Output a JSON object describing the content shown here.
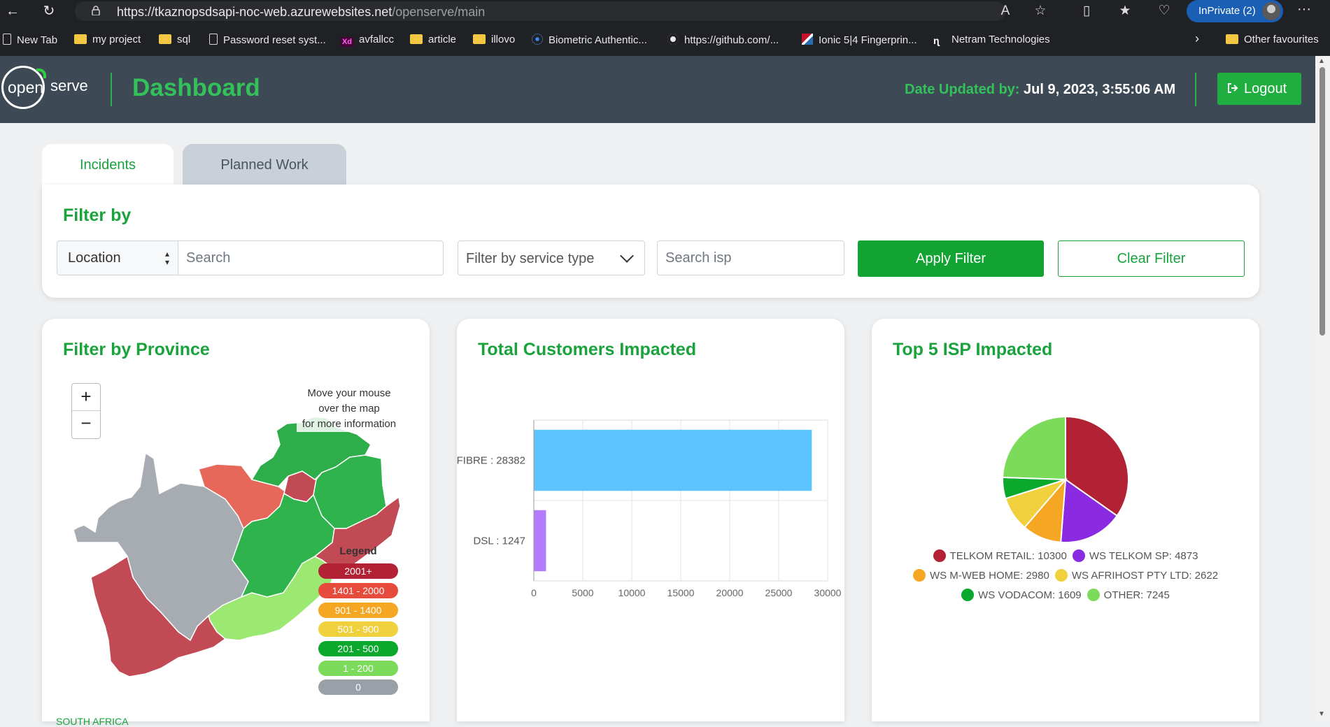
{
  "browser": {
    "url_host": "https://tkaznopsdsapi-noc-web.azurewebsites.net",
    "url_path": "/openserve/main",
    "inprivate_label": "InPrivate (2)",
    "bookmarks": [
      {
        "label": "New Tab",
        "icon": "page-icon"
      },
      {
        "label": "my project",
        "icon": "folder-icon"
      },
      {
        "label": "sql",
        "icon": "folder-icon"
      },
      {
        "label": "Password reset syst...",
        "icon": "page-icon"
      },
      {
        "label": "avfallcc",
        "icon": "xd-icon"
      },
      {
        "label": "article",
        "icon": "folder-icon"
      },
      {
        "label": "illovo",
        "icon": "folder-icon"
      },
      {
        "label": "Biometric Authentic...",
        "icon": "biometric-icon"
      },
      {
        "label": "https://github.com/...",
        "icon": "github-icon"
      },
      {
        "label": "Ionic 5|4 Fingerprin...",
        "icon": "ionic-icon"
      },
      {
        "label": "Netram Technologies",
        "icon": "netram-icon"
      }
    ],
    "other_favourites": "Other favourites"
  },
  "header": {
    "logo_open": "open",
    "logo_serve": "serve",
    "title": "Dashboard",
    "date_label": "Date Updated by:",
    "date_value": "Jul 9, 2023, 3:55:06 AM",
    "logout_label": "Logout"
  },
  "tabs": [
    {
      "label": "Incidents",
      "active": true
    },
    {
      "label": "Planned Work",
      "active": false
    }
  ],
  "filter": {
    "title": "Filter by",
    "location_value": "Location",
    "search_placeholder": "Search",
    "service_placeholder": "Filter by service type",
    "isp_placeholder": "Search isp",
    "apply_label": "Apply Filter",
    "clear_label": "Clear Filter"
  },
  "province_card": {
    "title": "Filter by Province",
    "zoom_in": "+",
    "zoom_out": "−",
    "hint_lines": [
      "Move your mouse",
      "over the map",
      "for more information"
    ],
    "legend_title": "Legend",
    "legend": [
      {
        "label": "2001+",
        "color": "#b22234"
      },
      {
        "label": "1401 - 2000",
        "color": "#e64b3c"
      },
      {
        "label": "901 - 1400",
        "color": "#f5a623"
      },
      {
        "label": "501 - 900",
        "color": "#f0d03c"
      },
      {
        "label": "201 - 500",
        "color": "#0aa82c"
      },
      {
        "label": "1 - 200",
        "color": "#7ddb5b"
      },
      {
        "label": "0",
        "color": "#9aa0a8"
      }
    ],
    "footer_label": "SOUTH AFRICA"
  },
  "customers_card": {
    "title": "Total Customers Impacted"
  },
  "isp_card": {
    "title": "Top 5 ISP Impacted"
  },
  "chart_data": [
    {
      "type": "bar",
      "orientation": "horizontal",
      "categories": [
        "FIBRE",
        "DSL"
      ],
      "category_labels": [
        "FIBRE  : 28382",
        "DSL  : 1247"
      ],
      "values": [
        28382,
        1247
      ],
      "colors": [
        "#5ec4ff",
        "#b57bff"
      ],
      "xlim": [
        0,
        30000
      ],
      "xticks": [
        0,
        5000,
        10000,
        15000,
        20000,
        25000,
        30000
      ],
      "grid": true
    },
    {
      "type": "pie",
      "labels": [
        "TELKOM RETAIL",
        "WS TELKOM SP",
        "WS M-WEB HOME",
        "WS AFRIHOST PTY LTD",
        "WS VODACOM",
        "OTHER"
      ],
      "legend_labels": [
        "TELKOM RETAIL: 10300",
        "WS TELKOM SP: 4873",
        "WS M-WEB HOME: 2980",
        "WS AFRIHOST PTY LTD: 2622",
        "WS VODACOM: 1609",
        "OTHER: 7245"
      ],
      "values": [
        10300,
        4873,
        2980,
        2622,
        1609,
        7245
      ],
      "colors": [
        "#b22234",
        "#8a2be2",
        "#f5a623",
        "#f0d03c",
        "#0aa82c",
        "#7ddb5b"
      ],
      "legend_placement": "bottom"
    }
  ]
}
